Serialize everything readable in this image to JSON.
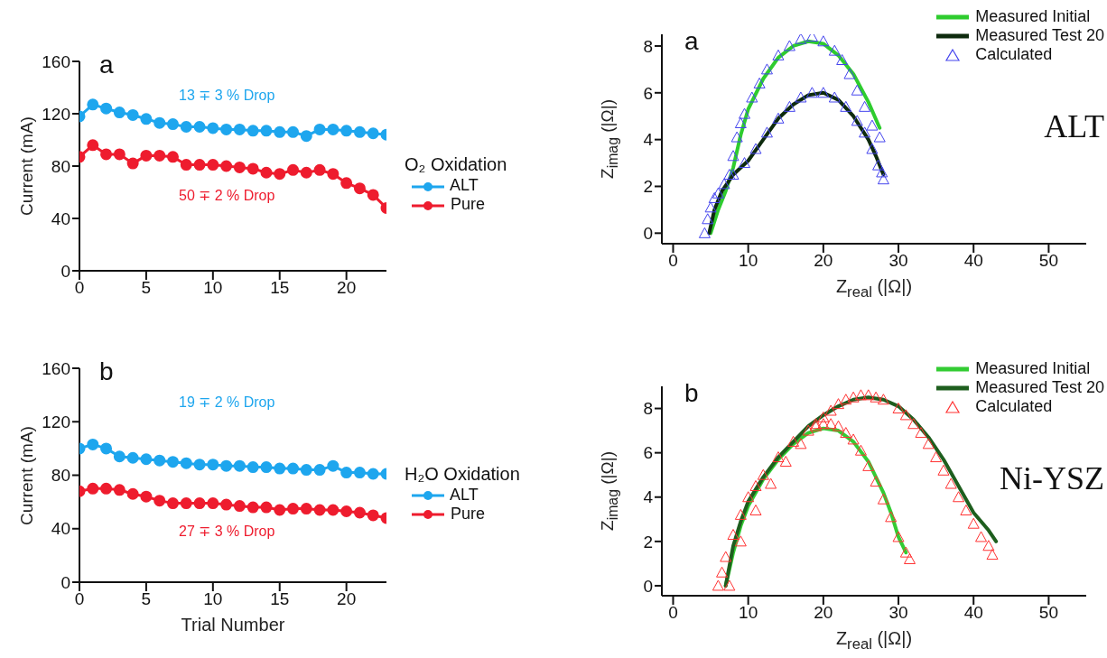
{
  "chart_data": [
    {
      "type": "line",
      "ylabel": "Current (mA)",
      "legend_title": "O₂ Oxidation",
      "legend": "right",
      "marker": "circle",
      "xlim": [
        0,
        23
      ],
      "xticks": [
        0,
        5,
        10,
        15,
        20
      ],
      "ylim": [
        0,
        160
      ],
      "yticks": [
        0,
        40,
        80,
        120,
        160
      ],
      "x": [
        0,
        1,
        2,
        3,
        4,
        5,
        6,
        7,
        8,
        9,
        10,
        11,
        12,
        13,
        14,
        15,
        16,
        17,
        18,
        19,
        20,
        21,
        22,
        23
      ],
      "series": [
        {
          "name": "ALT",
          "color": "#1ea6ee",
          "values": [
            118,
            127,
            124,
            121,
            119,
            116,
            113,
            112,
            110,
            110,
            109,
            108,
            108,
            107,
            107,
            106,
            106,
            103,
            108,
            108,
            107,
            106,
            105,
            104
          ]
        },
        {
          "name": "Pure",
          "color": "#ee1c2e",
          "values": [
            87,
            96,
            89,
            89,
            82,
            88,
            88,
            87,
            81,
            81,
            81,
            80,
            79,
            78,
            75,
            74,
            77,
            75,
            77,
            74,
            67,
            63,
            58,
            48
          ]
        }
      ],
      "annotations": [
        "a",
        "13 ∓ 3 % Drop",
        "50 ∓ 2 % Drop"
      ]
    },
    {
      "type": "scatter",
      "xlabel": "Z$_{real}$ (|Ω|)",
      "ylabel": "Z$_{imag}$ (|Ω|)",
      "legend": "top right",
      "xlim": [
        -1.5,
        55
      ],
      "xticks": [
        0,
        10,
        20,
        30,
        40,
        50
      ],
      "ylim": [
        -0.45,
        8.5
      ],
      "yticks": [
        0,
        2,
        4,
        6,
        8
      ],
      "series": [
        {
          "name": "Measured Initial",
          "type": "line",
          "color": "#2ecc2e",
          "x": [
            5,
            6,
            7,
            8,
            9,
            10,
            12,
            14,
            16,
            18,
            20,
            22,
            24,
            26,
            27.5
          ],
          "values": [
            0,
            1,
            1.8,
            2.8,
            4.2,
            5.3,
            6.6,
            7.5,
            8,
            8.2,
            8.1,
            7.6,
            6.8,
            5.6,
            4.5
          ]
        },
        {
          "name": "Measured Test 20",
          "type": "line",
          "color": "#0d2a0d",
          "x": [
            4.8,
            5.5,
            6.5,
            8,
            10,
            12,
            14,
            16,
            18,
            20,
            22,
            24,
            26,
            27,
            28
          ],
          "values": [
            0,
            1,
            1.8,
            2.5,
            3.1,
            4,
            4.9,
            5.5,
            5.9,
            6,
            5.7,
            5,
            4,
            3.3,
            2.5
          ]
        },
        {
          "name": "Calculated",
          "type": "scatter",
          "marker": "triangle",
          "color": "#4444ee",
          "x": [
            7.5,
            8,
            8.5,
            9,
            9.5,
            10.5,
            11.5,
            12.5,
            14,
            15.5,
            17,
            18.5,
            20,
            21.5,
            22.5,
            23.5,
            24.5,
            25.5,
            26.5,
            27.5,
            4.2,
            4.6,
            5,
            5.5,
            6,
            6.8,
            8,
            9.5,
            11,
            12.5,
            14,
            15.5,
            17,
            18.5,
            20,
            21.5,
            23,
            24.5,
            25.5,
            26.5,
            27.3,
            27.8,
            28
          ],
          "values": [
            2.5,
            3.3,
            4.1,
            4.7,
            5.1,
            5.8,
            6.4,
            7,
            7.6,
            8,
            8.3,
            8.4,
            8.2,
            7.8,
            7.4,
            6.8,
            6.1,
            5.4,
            4.6,
            4.1,
            0,
            0.6,
            1.1,
            1.5,
            1.7,
            2.1,
            2.5,
            3,
            3.6,
            4.3,
            4.9,
            5.4,
            5.8,
            6,
            6,
            5.8,
            5.4,
            4.8,
            4.3,
            3.6,
            2.9,
            2.6,
            2.3
          ]
        }
      ],
      "annotations": [
        "a",
        "ALT"
      ]
    },
    {
      "type": "line",
      "xlabel": "Trial Number",
      "ylabel": "Current (mA)",
      "legend_title": "H₂O Oxidation",
      "legend": "right",
      "marker": "circle",
      "xlim": [
        0,
        23
      ],
      "xticks": [
        0,
        5,
        10,
        15,
        20
      ],
      "ylim": [
        0,
        160
      ],
      "yticks": [
        0,
        40,
        80,
        120,
        160
      ],
      "x": [
        0,
        1,
        2,
        3,
        4,
        5,
        6,
        7,
        8,
        9,
        10,
        11,
        12,
        13,
        14,
        15,
        16,
        17,
        18,
        19,
        20,
        21,
        22,
        23
      ],
      "series": [
        {
          "name": "ALT",
          "color": "#1ea6ee",
          "values": [
            100,
            103,
            100,
            94,
            93,
            92,
            91,
            90,
            89,
            88,
            88,
            87,
            87,
            86,
            86,
            85,
            85,
            84,
            84,
            87,
            82,
            82,
            81,
            81
          ]
        },
        {
          "name": "Pure",
          "color": "#ee1c2e",
          "values": [
            68,
            70,
            70,
            69,
            66,
            64,
            61,
            59,
            59,
            59,
            59,
            58,
            57,
            56,
            56,
            54,
            55,
            55,
            54,
            54,
            53,
            52,
            50,
            48
          ]
        }
      ],
      "annotations": [
        "b",
        "19 ∓ 2 % Drop",
        "27 ∓ 3 % Drop"
      ]
    },
    {
      "type": "scatter",
      "xlabel": "Z$_{real}$ (|Ω|)",
      "ylabel": "Z$_{imag}$ (|Ω|)",
      "legend": "top right",
      "xlim": [
        -1.5,
        55
      ],
      "xticks": [
        0,
        10,
        20,
        30,
        40,
        50
      ],
      "ylim": [
        -0.45,
        9
      ],
      "yticks": [
        0,
        2,
        4,
        6,
        8
      ],
      "series": [
        {
          "name": "Measured Initial",
          "type": "line",
          "color": "#33cc33",
          "x": [
            7,
            8,
            9,
            10,
            12,
            14,
            16,
            18,
            20,
            22,
            24,
            26,
            28,
            29,
            30,
            31
          ],
          "values": [
            0,
            1.5,
            2.7,
            3.6,
            4.8,
            5.7,
            6.4,
            6.9,
            7.1,
            7,
            6.5,
            5.6,
            4.2,
            3.3,
            2.2,
            1.5
          ]
        },
        {
          "name": "Measured Test 20",
          "type": "line",
          "color": "#1e5e1e",
          "x": [
            7,
            8,
            9,
            10,
            12,
            14,
            16,
            18,
            20,
            22,
            24,
            26,
            28,
            30,
            32,
            34,
            36,
            38,
            40,
            42,
            43
          ],
          "values": [
            0,
            1.8,
            2.9,
            3.8,
            4.9,
            5.8,
            6.5,
            7.2,
            7.7,
            8.1,
            8.4,
            8.5,
            8.4,
            8.1,
            7.5,
            6.7,
            5.7,
            4.5,
            3.3,
            2.5,
            2
          ]
        },
        {
          "name": "Calculated",
          "type": "scatter",
          "marker": "triangle",
          "color": "#ff3333",
          "x": [
            6,
            6.5,
            7,
            8,
            9,
            10,
            11,
            12,
            14,
            16,
            18,
            19,
            20,
            21,
            22,
            23,
            24,
            25,
            26,
            27,
            28,
            29,
            30,
            31,
            31.5,
            7.5,
            9,
            11,
            13,
            15,
            17,
            19,
            20,
            21,
            22,
            23,
            24,
            25,
            26,
            27,
            28,
            30,
            31,
            32,
            33,
            34,
            35,
            36,
            37,
            38,
            39,
            40,
            41,
            42,
            42.5
          ],
          "values": [
            0,
            0.6,
            1.3,
            2.3,
            3.2,
            4,
            4.5,
            5,
            5.8,
            6.5,
            7,
            7.3,
            7.3,
            7.3,
            7.2,
            6.9,
            6.6,
            6.1,
            5.4,
            4.7,
            3.9,
            3.1,
            2.2,
            1.5,
            1.2,
            0,
            2,
            3.4,
            4.6,
            5.6,
            6.4,
            7.2,
            7.6,
            7.9,
            8.2,
            8.4,
            8.5,
            8.6,
            8.6,
            8.5,
            8.4,
            8,
            7.7,
            7.3,
            6.9,
            6.4,
            5.8,
            5.2,
            4.6,
            4,
            3.4,
            2.8,
            2.2,
            1.8,
            1.4
          ]
        }
      ],
      "annotations": [
        "b",
        "Ni-YSZ"
      ]
    }
  ]
}
